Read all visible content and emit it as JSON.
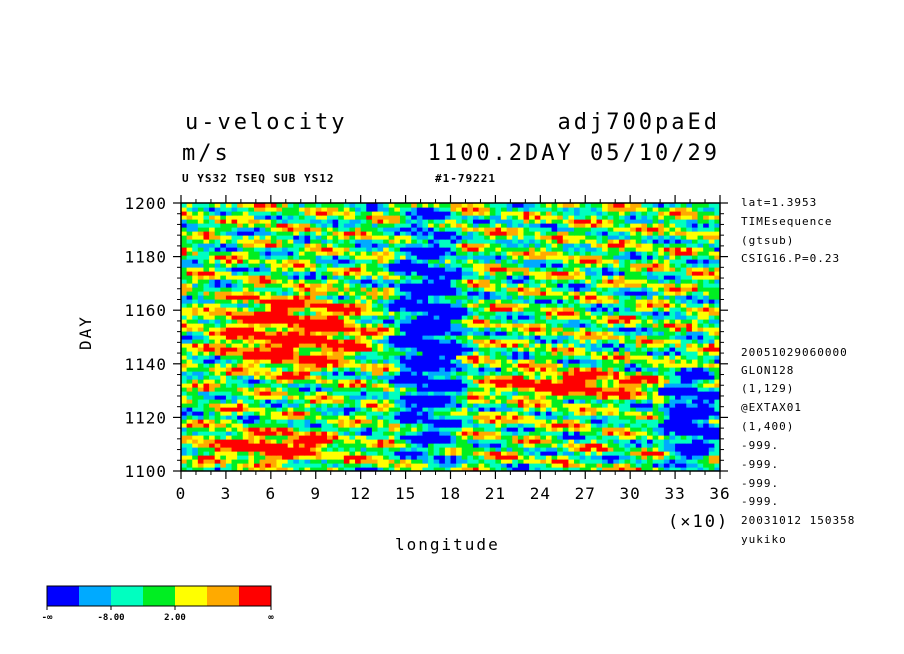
{
  "header": {
    "variable": "u-velocity",
    "units": "m/s",
    "experiment": "adj700paEd",
    "time_label": "1100.2DAY 05/10/29",
    "subtitle_left": "U YS32 TSEQ SUB YS12",
    "subtitle_right": "#1-79221"
  },
  "side_info": [
    "lat=1.3953",
    "TIMEsequence",
    "(gtsub)",
    "CSIG16.P=0.23"
  ],
  "side_info2": [
    "20051029060000",
    "GLON128",
    "(1,129)",
    "@EXTAX01",
    "(1,400)",
    "-999.",
    "-999.",
    "-999.",
    "-999.",
    "20031012 150358",
    "yukiko"
  ],
  "colorbar": {
    "colors": [
      "#0000ff",
      "#00aaff",
      "#00ffc0",
      "#00ee22",
      "#ffff00",
      "#ffaa00",
      "#ff0000"
    ],
    "labels": [
      "-∞",
      "-8.00",
      "2.00",
      "∞"
    ]
  },
  "chart_data": {
    "type": "heatmap",
    "title": "u-velocity",
    "xlabel": "longitude",
    "ylabel": "DAY",
    "x_multiplier": "(×10)",
    "xlim": [
      0,
      36
    ],
    "ylim": [
      1100,
      1200
    ],
    "xticks": [
      "0",
      "3",
      "6",
      "9",
      "12",
      "15",
      "18",
      "21",
      "24",
      "27",
      "30",
      "33",
      "36"
    ],
    "yticks": [
      "1100",
      "1120",
      "1140",
      "1160",
      "1180",
      "1200"
    ],
    "description_features": [
      {
        "level": "red",
        "x_range": [
          1,
          11
        ],
        "y_range": [
          1103,
          1116
        ]
      },
      {
        "level": "red",
        "x_range": [
          2,
          13
        ],
        "y_range": [
          1136,
          1168
        ]
      },
      {
        "level": "red",
        "x_range": [
          20,
          32
        ],
        "y_range": [
          1127,
          1138
        ]
      },
      {
        "level": "blue",
        "x_range": [
          14,
          19
        ],
        "y_range": [
          1100,
          1200
        ]
      },
      {
        "level": "blue",
        "x_range": [
          32,
          36
        ],
        "y_range": [
          1100,
          1140
        ]
      }
    ]
  }
}
